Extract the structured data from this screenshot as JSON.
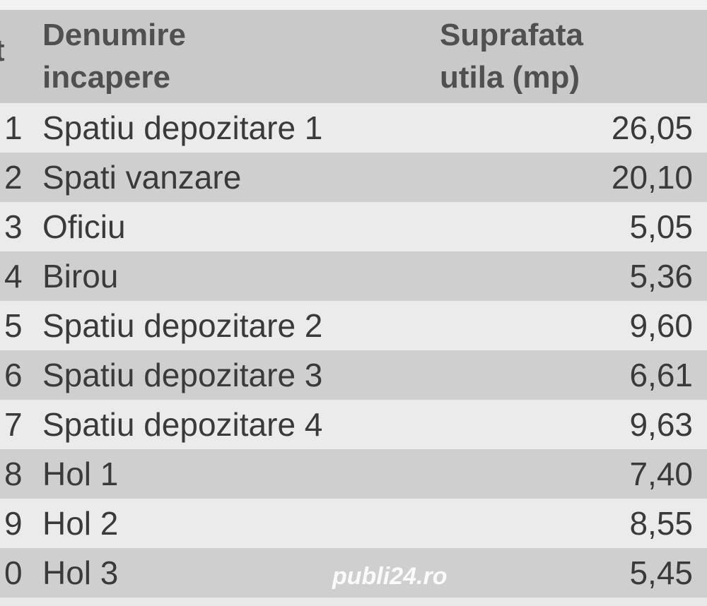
{
  "table": {
    "headers": {
      "nr": "t",
      "name": "Denumire\nincapere",
      "name_line1": "Denumire",
      "name_line2": "incapere",
      "area_line1": "Suprafata",
      "area_line2": "utila (mp)"
    },
    "rows": [
      {
        "nr": "1",
        "name": "Spatiu depozitare 1",
        "area": "26,05"
      },
      {
        "nr": "2",
        "name": "Spati vanzare",
        "area": "20,10"
      },
      {
        "nr": "3",
        "name": "Oficiu",
        "area": "5,05"
      },
      {
        "nr": "4",
        "name": "Birou",
        "area": "5,36"
      },
      {
        "nr": "5",
        "name": "Spatiu depozitare 2",
        "area": "9,60"
      },
      {
        "nr": "6",
        "name": "Spatiu depozitare 3",
        "area": "6,61"
      },
      {
        "nr": "7",
        "name": "Spatiu depozitare 4",
        "area": "9,63"
      },
      {
        "nr": "8",
        "name": "Hol 1",
        "area": "7,40"
      },
      {
        "nr": "9",
        "name": "Hol 2",
        "area": "8,55"
      },
      {
        "nr": "0",
        "name": "Hol 3",
        "area": "5,45"
      }
    ]
  },
  "watermark": "publi24.ro",
  "colors": {
    "header": "#c9c9c9",
    "row_light": "#ebebeb",
    "row_dark": "#cfcfcf",
    "text": "#3a3a3a"
  }
}
